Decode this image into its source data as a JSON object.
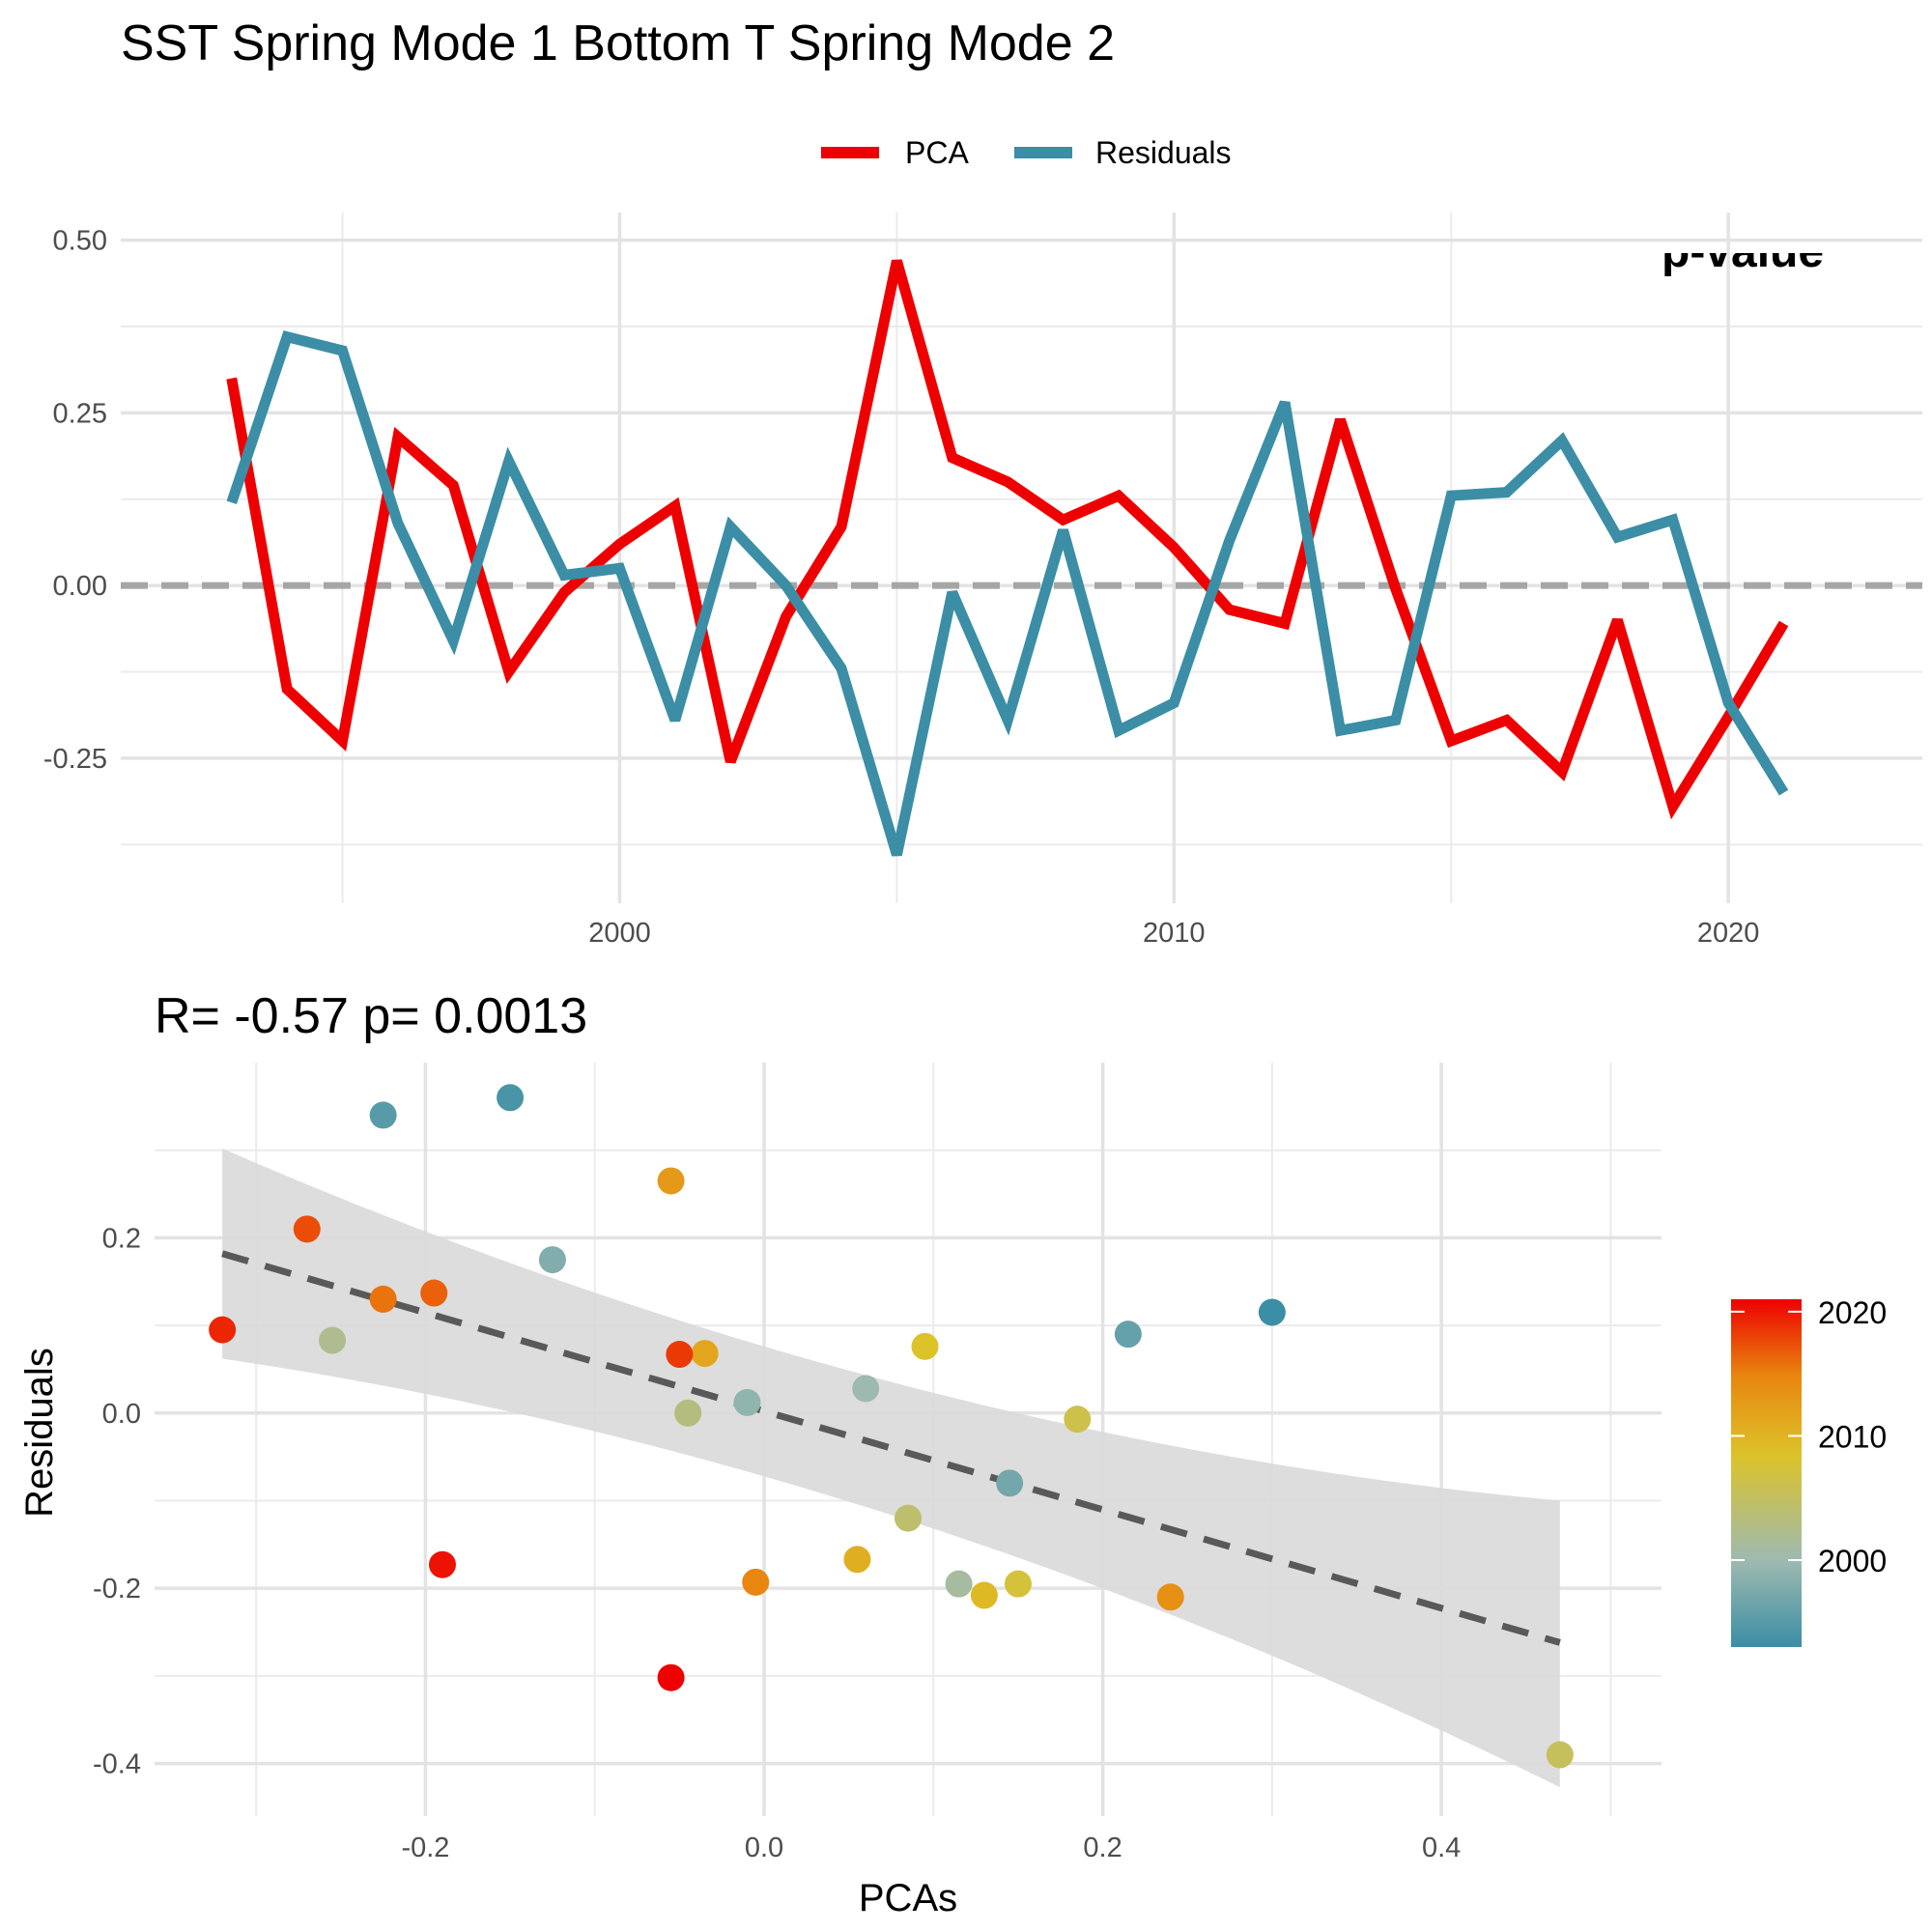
{
  "chart_data": [
    {
      "type": "line",
      "title": "SST Spring Mode 1 Bottom T Spring Mode 2",
      "partial_label": "p-value",
      "x": [
        1993,
        1994,
        1995,
        1996,
        1997,
        1998,
        1999,
        2000,
        2001,
        2002,
        2003,
        2004,
        2005,
        2006,
        2007,
        2008,
        2009,
        2010,
        2011,
        2012,
        2013,
        2014,
        2015,
        2016,
        2017,
        2018,
        2019,
        2020,
        2021
      ],
      "series": [
        {
          "name": "PCA",
          "color": "#ee0000",
          "values": [
            0.3,
            -0.15,
            -0.225,
            0.215,
            0.145,
            -0.125,
            -0.01,
            0.06,
            0.115,
            -0.255,
            -0.045,
            0.085,
            0.47,
            0.185,
            0.15,
            0.095,
            0.13,
            0.055,
            -0.035,
            -0.055,
            0.24,
            -0.005,
            -0.225,
            -0.195,
            -0.27,
            -0.05,
            -0.32,
            -0.19,
            -0.055
          ]
        },
        {
          "name": "Residuals",
          "color": "#3b8ea5",
          "values": [
            0.12,
            0.36,
            0.34,
            0.09,
            -0.08,
            0.18,
            0.015,
            0.025,
            -0.195,
            0.085,
            0.0,
            -0.12,
            -0.39,
            -0.01,
            -0.195,
            0.08,
            -0.21,
            -0.17,
            0.065,
            0.265,
            -0.21,
            -0.195,
            0.13,
            0.135,
            0.21,
            0.07,
            0.095,
            -0.17,
            -0.3
          ]
        }
      ],
      "reference_line": 0.0,
      "xticks": [
        "2000",
        "2010",
        "2020"
      ],
      "yticks": [
        "0.50",
        "0.25",
        "0.00",
        "-0.25"
      ],
      "xlim": [
        1991.0,
        2023.5
      ],
      "ylim": [
        -0.46,
        0.54
      ],
      "legend": "top"
    },
    {
      "type": "scatter",
      "title": "R= -0.57  p= 0.0013",
      "xlabel": "PCAs",
      "ylabel": "Residuals",
      "xlim": [
        -0.36,
        0.53
      ],
      "ylim": [
        -0.46,
        0.4
      ],
      "xticks": [
        "-0.2",
        "0.0",
        "0.2",
        "0.4"
      ],
      "yticks": [
        "0.2",
        "0.0",
        "-0.2",
        "-0.4"
      ],
      "points": [
        {
          "x": 0.3,
          "y": 0.115,
          "year": 1993
        },
        {
          "x": -0.15,
          "y": 0.36,
          "year": 1994
        },
        {
          "x": -0.225,
          "y": 0.34,
          "year": 1995
        },
        {
          "x": 0.215,
          "y": 0.09,
          "year": 1996
        },
        {
          "x": 0.145,
          "y": -0.08,
          "year": 1997
        },
        {
          "x": -0.125,
          "y": 0.175,
          "year": 1998
        },
        {
          "x": -0.01,
          "y": 0.012,
          "year": 1999
        },
        {
          "x": 0.06,
          "y": 0.028,
          "year": 2000
        },
        {
          "x": 0.115,
          "y": -0.195,
          "year": 2001
        },
        {
          "x": -0.255,
          "y": 0.083,
          "year": 2002
        },
        {
          "x": -0.045,
          "y": 0.0,
          "year": 2003
        },
        {
          "x": 0.085,
          "y": -0.12,
          "year": 2004
        },
        {
          "x": 0.47,
          "y": -0.39,
          "year": 2005
        },
        {
          "x": 0.185,
          "y": -0.007,
          "year": 2006
        },
        {
          "x": 0.15,
          "y": -0.195,
          "year": 2007
        },
        {
          "x": 0.095,
          "y": 0.076,
          "year": 2008
        },
        {
          "x": 0.13,
          "y": -0.208,
          "year": 2009
        },
        {
          "x": 0.055,
          "y": -0.167,
          "year": 2010
        },
        {
          "x": -0.035,
          "y": 0.068,
          "year": 2011
        },
        {
          "x": -0.055,
          "y": 0.265,
          "year": 2012
        },
        {
          "x": 0.24,
          "y": -0.21,
          "year": 2013
        },
        {
          "x": -0.005,
          "y": -0.193,
          "year": 2014
        },
        {
          "x": -0.225,
          "y": 0.13,
          "year": 2015
        },
        {
          "x": -0.195,
          "y": 0.137,
          "year": 2016
        },
        {
          "x": -0.27,
          "y": 0.21,
          "year": 2017
        },
        {
          "x": -0.05,
          "y": 0.067,
          "year": 2018
        },
        {
          "x": -0.32,
          "y": 0.095,
          "year": 2019
        },
        {
          "x": -0.19,
          "y": -0.173,
          "year": 2020
        },
        {
          "x": -0.055,
          "y": -0.302,
          "year": 2021
        }
      ],
      "fit": {
        "x": [
          -0.32,
          0.47
        ],
        "y": [
          0.182,
          -0.262
        ],
        "ci_low": [
          0.062,
          -0.427
        ],
        "ci_high": [
          0.302,
          -0.1
        ]
      },
      "fit_color": "#595959",
      "ribbon_color": "#d9d9d9",
      "colorbar": {
        "title": "",
        "labels": [
          "2020",
          "2010",
          "2000"
        ],
        "ticks": [
          2020,
          2010,
          2000
        ],
        "range": [
          1993,
          2021
        ]
      }
    }
  ]
}
